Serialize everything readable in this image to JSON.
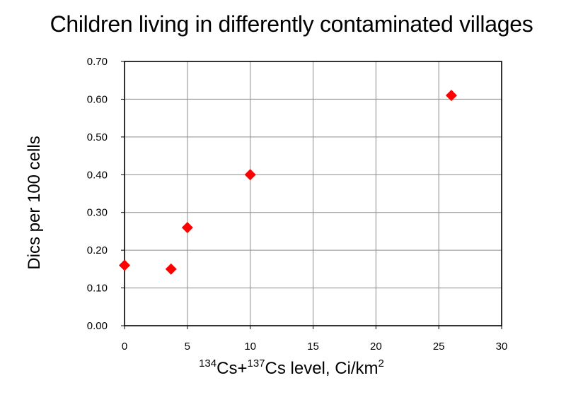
{
  "chart_data": {
    "type": "scatter",
    "title": "Children living in differently contaminated villages",
    "xlabel": {
      "sup1": "134",
      "text1": "Cs+",
      "sup2": "137",
      "text2": "Cs level, Ci/km",
      "sup3": "2"
    },
    "ylabel": "Dics per 100 cells",
    "xlim": [
      0,
      30
    ],
    "ylim": [
      0,
      0.7
    ],
    "x_ticks": [
      0,
      5,
      10,
      15,
      20,
      25,
      30
    ],
    "y_ticks": [
      0.0,
      0.1,
      0.2,
      0.3,
      0.4,
      0.5,
      0.6,
      0.7
    ],
    "y_tick_labels": [
      "0.00",
      "0.10",
      "0.20",
      "0.30",
      "0.40",
      "0.50",
      "0.60",
      "0.70"
    ],
    "grid": true,
    "marker": "diamond",
    "marker_color": "#ff0000",
    "points": [
      {
        "x": 0,
        "y": 0.16
      },
      {
        "x": 3.7,
        "y": 0.15
      },
      {
        "x": 5,
        "y": 0.26
      },
      {
        "x": 10,
        "y": 0.4
      },
      {
        "x": 26,
        "y": 0.61
      }
    ]
  }
}
